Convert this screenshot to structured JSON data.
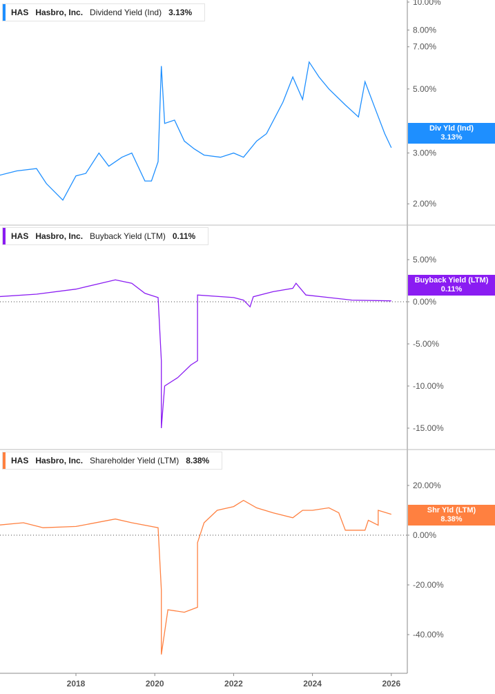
{
  "company": {
    "ticker": "HAS",
    "name": "Hasbro, Inc."
  },
  "chart_data": [
    {
      "type": "line",
      "title": "Dividend Yield (Ind)",
      "value_label": "3.13%",
      "badge_label": "Div Yld (Ind)",
      "color": "#1e8fff",
      "scale": "log",
      "y_ticks": [
        "10.00%",
        "8.00%",
        "7.00%",
        "5.00%",
        "3.00%",
        "2.00%"
      ],
      "ylim": [
        1.85,
        10
      ],
      "x": [
        "2016-01",
        "2016-07",
        "2017-01",
        "2017-04",
        "2017-09",
        "2018-01",
        "2018-04",
        "2018-08",
        "2018-11",
        "2019-03",
        "2019-06",
        "2019-10",
        "2019-12",
        "2020-02",
        "2020-03",
        "2020-04",
        "2020-07",
        "2020-10",
        "2021-01",
        "2021-04",
        "2021-09",
        "2022-01",
        "2022-04",
        "2022-08",
        "2022-11",
        "2023-04",
        "2023-07",
        "2023-10",
        "2023-12",
        "2024-03",
        "2024-06",
        "2024-11",
        "2025-03",
        "2025-05",
        "2025-08",
        "2025-11",
        "2026-01"
      ],
      "values": [
        2.5,
        2.6,
        2.65,
        2.35,
        2.06,
        2.5,
        2.55,
        3.0,
        2.7,
        2.9,
        3.0,
        2.4,
        2.4,
        2.8,
        6.0,
        3.8,
        3.9,
        3.3,
        3.1,
        2.95,
        2.9,
        3.0,
        2.9,
        3.3,
        3.5,
        4.5,
        5.5,
        4.6,
        6.2,
        5.5,
        5.0,
        4.4,
        4.0,
        5.3,
        4.3,
        3.5,
        3.13
      ]
    },
    {
      "type": "line",
      "title": "Buyback Yield (LTM)",
      "value_label": "0.11%",
      "badge_label": "Buyback Yield (LTM)",
      "color": "#8a1cf2",
      "scale": "linear",
      "y_ticks": [
        "5.00%",
        "0.00%",
        "-5.00%",
        "-10.00%",
        "-15.00%"
      ],
      "ylim": [
        -17.5,
        9
      ],
      "x": [
        "2016-01",
        "2017-01",
        "2018-01",
        "2019-01",
        "2019-06",
        "2019-10",
        "2020-02",
        "2020-03",
        "2020-03",
        "2020-04",
        "2020-08",
        "2020-12",
        "2021-02",
        "2021-02",
        "2022-01",
        "2022-04",
        "2022-06",
        "2022-07",
        "2023-01",
        "2023-07",
        "2023-08",
        "2023-11",
        "2024-06",
        "2025-01",
        "2026-01"
      ],
      "values": [
        0.6,
        0.9,
        1.5,
        2.6,
        2.2,
        1.0,
        0.5,
        -7,
        -15,
        -10,
        -9,
        -7.5,
        -7,
        0.8,
        0.5,
        0.2,
        -0.6,
        0.6,
        1.2,
        1.6,
        2.2,
        0.8,
        0.5,
        0.2,
        0.11
      ]
    },
    {
      "type": "line",
      "title": "Shareholder Yield (LTM)",
      "value_label": "8.38%",
      "badge_label": "Shr Yld (LTM)",
      "color": "#ff8040",
      "scale": "linear",
      "y_ticks": [
        "20.00%",
        "0.00%",
        "-20.00%",
        "-40.00%"
      ],
      "ylim": [
        -55,
        35
      ],
      "x": [
        "2016-01",
        "2016-09",
        "2017-03",
        "2018-01",
        "2019-01",
        "2019-06",
        "2020-02",
        "2020-03",
        "2020-03",
        "2020-05",
        "2020-10",
        "2021-02",
        "2021-02",
        "2021-04",
        "2021-08",
        "2022-01",
        "2022-04",
        "2022-08",
        "2023-01",
        "2023-07",
        "2023-10",
        "2024-01",
        "2024-06",
        "2024-09",
        "2024-11",
        "2025-05",
        "2025-06",
        "2025-09",
        "2025-09",
        "2026-01"
      ],
      "values": [
        4,
        5,
        3,
        3.5,
        6.5,
        5,
        3,
        -22,
        -48,
        -30,
        -31,
        -29,
        -3,
        5,
        10,
        11.5,
        14,
        11,
        9,
        7,
        10,
        10,
        11,
        9,
        2,
        2,
        6,
        4,
        10,
        8.38
      ]
    }
  ],
  "x_ticks": [
    "2018",
    "2020",
    "2022",
    "2024",
    "2026"
  ]
}
